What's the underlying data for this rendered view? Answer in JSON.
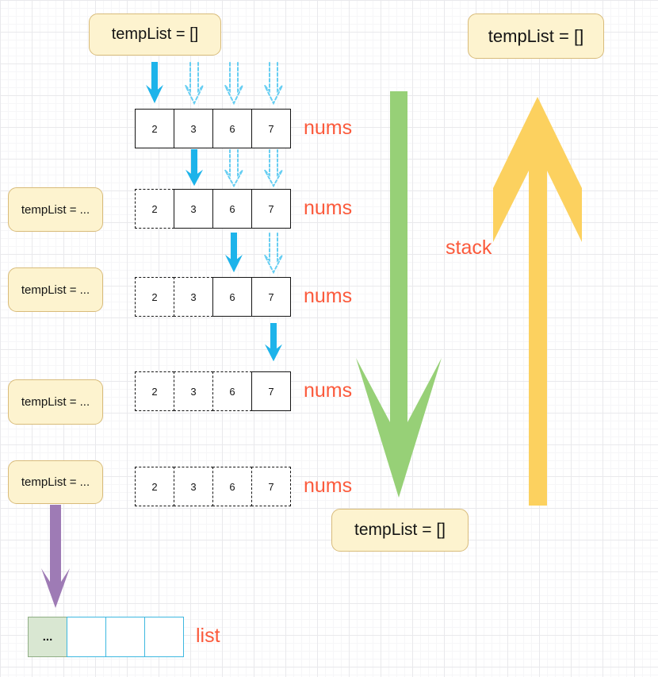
{
  "callouts": {
    "top_left": "tempList = []",
    "top_right": "tempList = []",
    "bottom_center": "tempList = []",
    "left_items": [
      {
        "label": "tempList = ..."
      },
      {
        "label": "tempList = ..."
      },
      {
        "label": "tempList = ..."
      },
      {
        "label": "tempList = ..."
      }
    ]
  },
  "labels": {
    "nums": "nums",
    "stack": "stack",
    "list": "list"
  },
  "array_rows": [
    {
      "values": [
        "2",
        "3",
        "6",
        "7"
      ],
      "dashed_cells": [],
      "solid_arrow_cell": 0,
      "dashed_arrow_cells": [
        1,
        2,
        3
      ],
      "label": "nums"
    },
    {
      "values": [
        "2",
        "3",
        "6",
        "7"
      ],
      "dashed_cells": [
        0
      ],
      "solid_arrow_cell": 1,
      "dashed_arrow_cells": [
        2,
        3
      ],
      "label": "nums"
    },
    {
      "values": [
        "2",
        "3",
        "6",
        "7"
      ],
      "dashed_cells": [
        0,
        1
      ],
      "solid_arrow_cell": 2,
      "dashed_arrow_cells": [
        3
      ],
      "label": "nums"
    },
    {
      "values": [
        "2",
        "3",
        "6",
        "7"
      ],
      "dashed_cells": [
        0,
        1,
        2
      ],
      "solid_arrow_cell": 3,
      "dashed_arrow_cells": [],
      "label": "nums"
    },
    {
      "values": [
        "2",
        "3",
        "6",
        "7"
      ],
      "dashed_cells": [
        0,
        1,
        2,
        3
      ],
      "solid_arrow_cell": null,
      "dashed_arrow_cells": [],
      "label": "nums"
    }
  ],
  "list_row": {
    "cells": [
      "...",
      "",
      "",
      ""
    ]
  },
  "colors": {
    "callout_fill": "#fdf3cf",
    "callout_border": "#d8bb7a",
    "accent_label_orange": "#fb5a3c",
    "solid_arrow_blue": "#1db3ea",
    "dashed_arrow_blue": "#66cef2",
    "big_down_arrow_green": "#97d077",
    "big_up_arrow_yellow": "#fcd15f",
    "small_down_arrow_purple": "#9e7bb5",
    "list_first_cell_fill": "#d9e7d2",
    "list_cell_border": "#3eb8e0"
  }
}
